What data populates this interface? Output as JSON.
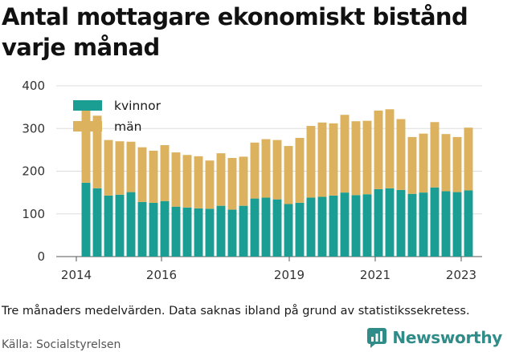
{
  "title": "Antal mottagare ekonomiskt bistånd varje månad",
  "caption": "Tre månaders medelvärden. Data saknas ibland på grund av statistikssekretess.",
  "source": "Källa: Socialstyrelsen",
  "brand": {
    "name": "Newsworthy",
    "icon": "newsworthy-logo-icon",
    "color": "#2f8c88"
  },
  "colors": {
    "kvinnor": "#1a9e93",
    "man": "#dcb25f",
    "grid": "#dddddd"
  },
  "chart_data": {
    "type": "bar",
    "stacked": true,
    "ylim": [
      0,
      400
    ],
    "yticks": [
      0,
      100,
      200,
      300,
      400
    ],
    "xticks": [
      "2014",
      "2016",
      "2019",
      "2021",
      "2023"
    ],
    "grid": true,
    "legend_position": "top-left",
    "series": [
      {
        "name": "kvinnor",
        "values": [
          173,
          160,
          143,
          145,
          151,
          128,
          126,
          130,
          117,
          115,
          113,
          112,
          119,
          110,
          119,
          136,
          138,
          134,
          123,
          126,
          138,
          140,
          143,
          150,
          144,
          146,
          158,
          160,
          156,
          147,
          150,
          162,
          153,
          151,
          155
        ]
      },
      {
        "name": "män",
        "values": [
          170,
          170,
          130,
          125,
          118,
          128,
          122,
          131,
          127,
          123,
          122,
          113,
          123,
          121,
          115,
          131,
          137,
          139,
          136,
          152,
          168,
          174,
          169,
          182,
          173,
          172,
          184,
          185,
          166,
          133,
          138,
          153,
          134,
          129,
          147
        ]
      }
    ]
  }
}
